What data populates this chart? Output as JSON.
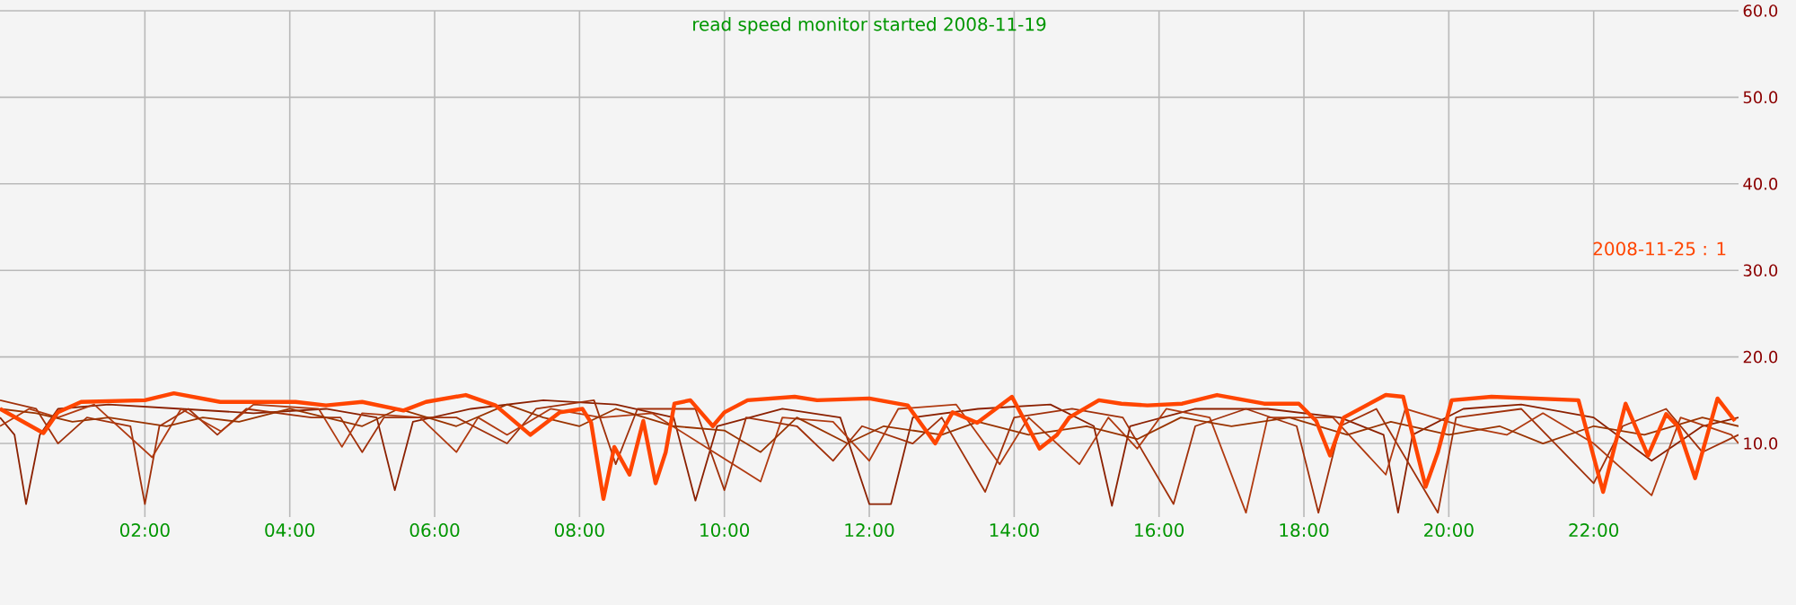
{
  "chart_data": {
    "type": "line",
    "title": "read speed monitor started 2008-11-19",
    "xlim": [
      0,
      24
    ],
    "ylim": [
      1.5,
      60
    ],
    "xticks": [
      {
        "value": 2,
        "label": "02:00"
      },
      {
        "value": 4,
        "label": "04:00"
      },
      {
        "value": 6,
        "label": "06:00"
      },
      {
        "value": 8,
        "label": "08:00"
      },
      {
        "value": 10,
        "label": "10:00"
      },
      {
        "value": 12,
        "label": "12:00"
      },
      {
        "value": 14,
        "label": "14:00"
      },
      {
        "value": 16,
        "label": "16:00"
      },
      {
        "value": 18,
        "label": "18:00"
      },
      {
        "value": 20,
        "label": "20:00"
      },
      {
        "value": 22,
        "label": "22:00"
      }
    ],
    "yticks": [
      {
        "value": 10,
        "label": "10.0"
      },
      {
        "value": 20,
        "label": "20.0"
      },
      {
        "value": 30,
        "label": "30.0"
      },
      {
        "value": 40,
        "label": "40.0"
      },
      {
        "value": 50,
        "label": "50.0"
      },
      {
        "value": 60,
        "label": "60.0"
      }
    ],
    "grid": true,
    "marker": "none",
    "line_style": "solid",
    "series": [
      {
        "color": "#8b2000",
        "x": [
          0,
          0.2,
          0.36,
          0.55,
          0.8,
          1.5,
          2.5,
          3.5,
          4.5,
          5.2,
          5.45,
          5.7,
          6.5,
          7.5,
          8.5,
          9.3,
          9.6,
          9.9,
          10.8,
          11.6,
          12.0,
          12.3,
          12.6,
          13.5,
          14.5,
          15.1,
          15.35,
          15.6,
          16.5,
          17.5,
          18.5,
          19.1,
          19.3,
          19.5,
          20.2,
          21,
          22,
          22.8,
          23.5,
          24
        ],
        "values": [
          13,
          11,
          3,
          11,
          14,
          14.5,
          14,
          13.5,
          14,
          13,
          4.6,
          12.5,
          14,
          15,
          14.5,
          13,
          3.4,
          12,
          14,
          13,
          3,
          3,
          13,
          14,
          14.5,
          12,
          2.8,
          12,
          14,
          14,
          13,
          11,
          2,
          11,
          14,
          14.5,
          13,
          8,
          12,
          13
        ]
      },
      {
        "color": "#a0300a",
        "x": [
          0,
          0.5,
          0.8,
          1.2,
          1.8,
          2.0,
          2.2,
          2.6,
          3.0,
          3.4,
          4.3,
          4.7,
          5.0,
          5.3,
          6.3,
          7.0,
          7.4,
          8.2,
          8.5,
          8.8,
          9.6,
          10.0,
          10.3,
          11.0,
          11.5,
          11.9,
          12.6,
          13.0,
          13.6,
          14.0,
          14.8,
          15.5,
          16.2,
          16.5,
          17.2,
          17.9,
          18.2,
          18.5,
          19.0,
          19.85,
          20.1,
          21,
          22.0,
          22.4,
          23,
          23.5,
          24
        ],
        "values": [
          15,
          14,
          10,
          13,
          12,
          3,
          12,
          14,
          11,
          14,
          13,
          13,
          9,
          13,
          13,
          10,
          14,
          15,
          7.6,
          14,
          14,
          4.6,
          13,
          12,
          8,
          12,
          10,
          13,
          4.4,
          13,
          14,
          13,
          3,
          12,
          14,
          12,
          2,
          12,
          14,
          2,
          13,
          14,
          5.4,
          12,
          14,
          9,
          11
        ]
      },
      {
        "color": "#b03a10",
        "x": [
          0,
          0.4,
          0.8,
          1.3,
          2.1,
          2.5,
          3.05,
          3.5,
          4.4,
          4.72,
          5,
          5.8,
          6.3,
          6.6,
          7.0,
          7.6,
          8.3,
          9.0,
          10.5,
          10.8,
          11.5,
          12.0,
          12.4,
          13.2,
          13.8,
          14.2,
          14.9,
          15.3,
          15.7,
          16.1,
          16.7,
          17.2,
          17.5,
          18.4,
          19.13,
          19.4,
          20.2,
          20.8,
          21.3,
          22.0,
          22.8,
          23.2,
          23.9,
          24
        ],
        "values": [
          12,
          14,
          13,
          14.5,
          8.4,
          14,
          11.4,
          14.5,
          14,
          9.6,
          13.5,
          13,
          9,
          13,
          11,
          14,
          13,
          13.5,
          5.6,
          13,
          12.5,
          8,
          14,
          14.5,
          7.6,
          13,
          7.6,
          13,
          9.4,
          14,
          13,
          2,
          13,
          13,
          6.4,
          14,
          12,
          11,
          13.5,
          10,
          4,
          13,
          11,
          10
        ]
      },
      {
        "color": "#993300",
        "x": [
          0,
          0.5,
          1,
          1.5,
          2.3,
          2.8,
          3.3,
          4,
          5,
          5.5,
          6.3,
          7,
          7.5,
          8,
          8.5,
          9.3,
          10,
          10.5,
          11,
          11.7,
          12.2,
          13,
          13.5,
          14.2,
          15,
          15.7,
          16.3,
          17,
          17.8,
          18.6,
          19.2,
          20,
          20.7,
          21.3,
          22,
          22.7,
          23.5,
          24
        ],
        "values": [
          14,
          13.5,
          12.5,
          13,
          12,
          13,
          12.5,
          14,
          12,
          14,
          12,
          14.5,
          13,
          12,
          14,
          12,
          11.5,
          9,
          13,
          10,
          12,
          11,
          12.5,
          11,
          12,
          10.5,
          13,
          12,
          13,
          11,
          12.5,
          11,
          12,
          10,
          12,
          11,
          13,
          12
        ]
      },
      {
        "name": "2008-11-25 : 1",
        "color": "#ff4500",
        "x": [
          0,
          0.6,
          0.8,
          1.12,
          2,
          2.4,
          3.04,
          4.08,
          4.5,
          5.0,
          5.57,
          5.88,
          6.43,
          6.84,
          7.32,
          7.73,
          8.04,
          8.16,
          8.33,
          8.48,
          8.69,
          8.88,
          9.05,
          9.19,
          9.31,
          9.53,
          9.84,
          10.0,
          10.32,
          10.97,
          11.28,
          12,
          12.53,
          12.91,
          13.15,
          13.49,
          13.97,
          14.35,
          14.59,
          14.76,
          15.17,
          15.48,
          15.84,
          16.32,
          16.8,
          17.45,
          17.93,
          18.17,
          18.36,
          18.55,
          19.13,
          19.37,
          19.68,
          19.85,
          20.04,
          20.59,
          21.79,
          22.13,
          22.44,
          22.75,
          23,
          23.16,
          23.4,
          23.71,
          23.95
        ],
        "values": [
          14,
          11.2,
          13.6,
          14.8,
          15,
          15.8,
          14.8,
          14.8,
          14.4,
          14.8,
          13.8,
          14.8,
          15.6,
          14.4,
          11,
          13.6,
          14,
          12.4,
          3.6,
          9.6,
          6.4,
          12.6,
          5.4,
          9,
          14.6,
          15,
          12,
          13.6,
          15,
          15.4,
          15,
          15.2,
          14.4,
          10,
          13.6,
          12.4,
          15.4,
          9.4,
          11,
          13,
          15,
          14.6,
          14.4,
          14.6,
          15.6,
          14.6,
          14.6,
          12.6,
          8.6,
          13,
          15.6,
          15.4,
          5,
          9,
          15,
          15.4,
          15,
          4.4,
          14.6,
          8.6,
          13.4,
          12,
          6,
          15.2,
          12.6
        ]
      }
    ]
  }
}
